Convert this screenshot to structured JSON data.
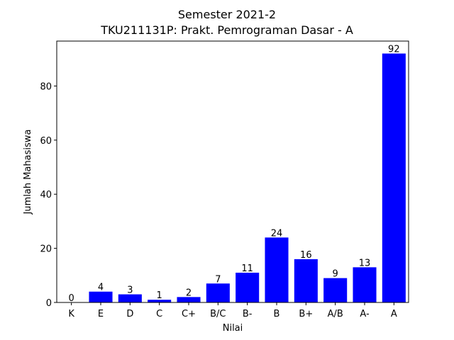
{
  "chart_data": {
    "type": "bar",
    "title_lines": [
      "Semester 2021-2",
      "TKU211131P: Prakt. Pemrograman Dasar - A"
    ],
    "xlabel": "Nilai",
    "ylabel": "Jumlah Mahasiswa",
    "categories": [
      "K",
      "E",
      "D",
      "C",
      "C+",
      "B/C",
      "B-",
      "B",
      "B+",
      "A/B",
      "A-",
      "A"
    ],
    "values": [
      0,
      4,
      3,
      1,
      2,
      7,
      11,
      24,
      16,
      9,
      13,
      92
    ],
    "ylim": [
      0,
      96.6
    ],
    "yticks": [
      0,
      20,
      40,
      60,
      80
    ],
    "bar_color": "#0000ff",
    "grid": false,
    "legend": "none"
  }
}
